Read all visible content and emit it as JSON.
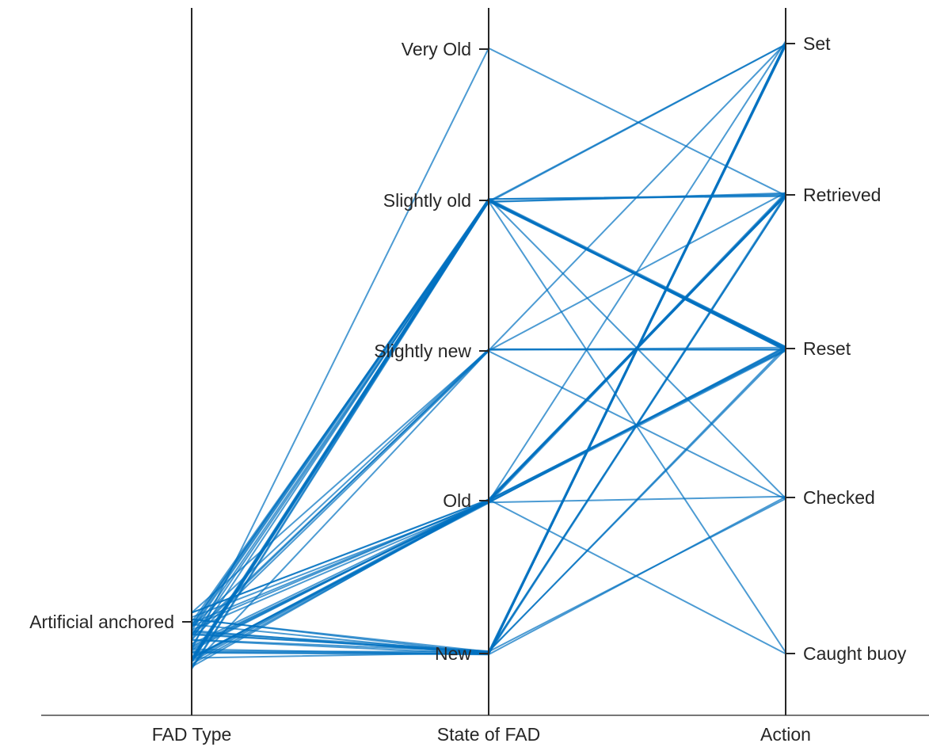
{
  "chart_data": {
    "type": "parallel_categories",
    "title": "",
    "dimensions": [
      {
        "name": "FAD Type",
        "categories": [
          "Artificial anchored"
        ]
      },
      {
        "name": "State of FAD",
        "categories": [
          "Very Old",
          "Slightly old",
          "Slightly new",
          "Old",
          "New"
        ]
      },
      {
        "name": "Action",
        "categories": [
          "Set",
          "Retrieved",
          "Reset",
          "Checked",
          "Caught buoy"
        ]
      }
    ],
    "flows": [
      {
        "state": "Very Old",
        "action": "Retrieved",
        "count": 1
      },
      {
        "state": "Slightly old",
        "action": "Set",
        "count": 2
      },
      {
        "state": "Slightly old",
        "action": "Retrieved",
        "count": 4
      },
      {
        "state": "Slightly old",
        "action": "Reset",
        "count": 9
      },
      {
        "state": "Slightly old",
        "action": "Checked",
        "count": 1
      },
      {
        "state": "Slightly old",
        "action": "Caught buoy",
        "count": 1
      },
      {
        "state": "Slightly new",
        "action": "Set",
        "count": 1
      },
      {
        "state": "Slightly new",
        "action": "Retrieved",
        "count": 1
      },
      {
        "state": "Slightly new",
        "action": "Reset",
        "count": 3
      },
      {
        "state": "Slightly new",
        "action": "Checked",
        "count": 1
      },
      {
        "state": "Old",
        "action": "Set",
        "count": 1
      },
      {
        "state": "Old",
        "action": "Retrieved",
        "count": 9
      },
      {
        "state": "Old",
        "action": "Reset",
        "count": 6
      },
      {
        "state": "Old",
        "action": "Checked",
        "count": 1
      },
      {
        "state": "Old",
        "action": "Caught buoy",
        "count": 1
      },
      {
        "state": "New",
        "action": "Set",
        "count": 7
      },
      {
        "state": "New",
        "action": "Retrieved",
        "count": 3
      },
      {
        "state": "New",
        "action": "Reset",
        "count": 2
      },
      {
        "state": "New",
        "action": "Checked",
        "count": 2
      }
    ],
    "line_color": "#0070c0",
    "axis_color": "#262626",
    "grid": false,
    "legend": "none"
  }
}
